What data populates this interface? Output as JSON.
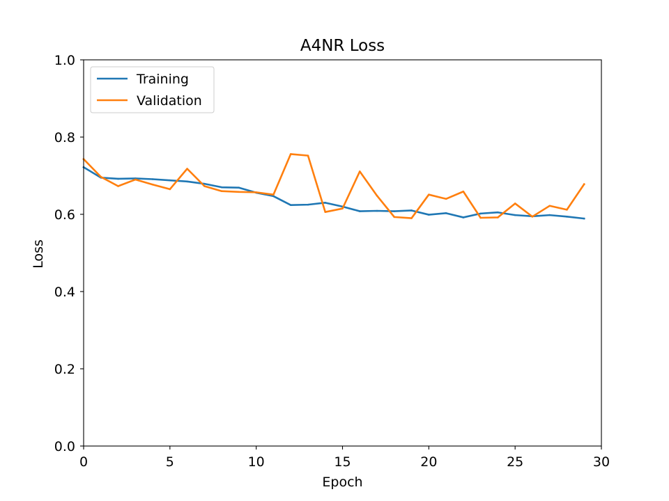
{
  "chart_data": {
    "type": "line",
    "title": "A4NR Loss",
    "xlabel": "Epoch",
    "ylabel": "Loss",
    "xlim": [
      0,
      30
    ],
    "ylim": [
      0,
      1.0
    ],
    "xticks": [
      0,
      5,
      10,
      15,
      20,
      25,
      30
    ],
    "xtick_labels": [
      "0",
      "5",
      "10",
      "15",
      "20",
      "25",
      "30"
    ],
    "yticks": [
      0,
      0.2,
      0.4,
      0.6,
      0.8,
      1.0
    ],
    "ytick_labels": [
      "0.0",
      "0.2",
      "0.4",
      "0.6",
      "0.8",
      "1.0"
    ],
    "grid": false,
    "legend_position": "upper-left",
    "x": [
      0,
      1,
      2,
      3,
      4,
      5,
      6,
      7,
      8,
      9,
      10,
      11,
      12,
      13,
      14,
      15,
      16,
      17,
      18,
      19,
      20,
      21,
      22,
      23,
      24,
      25,
      26,
      27,
      28,
      29
    ],
    "series": [
      {
        "name": "Training",
        "color": "#1f77b4",
        "values": [
          0.722,
          0.695,
          0.692,
          0.693,
          0.691,
          0.688,
          0.685,
          0.679,
          0.67,
          0.669,
          0.656,
          0.647,
          0.624,
          0.625,
          0.63,
          0.62,
          0.608,
          0.609,
          0.608,
          0.61,
          0.599,
          0.603,
          0.592,
          0.602,
          0.605,
          0.598,
          0.595,
          0.598,
          0.594,
          0.589
        ]
      },
      {
        "name": "Validation",
        "color": "#ff7f0e",
        "values": [
          0.743,
          0.697,
          0.673,
          0.69,
          0.677,
          0.665,
          0.718,
          0.673,
          0.66,
          0.658,
          0.657,
          0.651,
          0.756,
          0.752,
          0.606,
          0.615,
          0.711,
          0.648,
          0.593,
          0.59,
          0.651,
          0.64,
          0.659,
          0.591,
          0.592,
          0.628,
          0.594,
          0.622,
          0.612,
          0.678
        ]
      }
    ]
  }
}
